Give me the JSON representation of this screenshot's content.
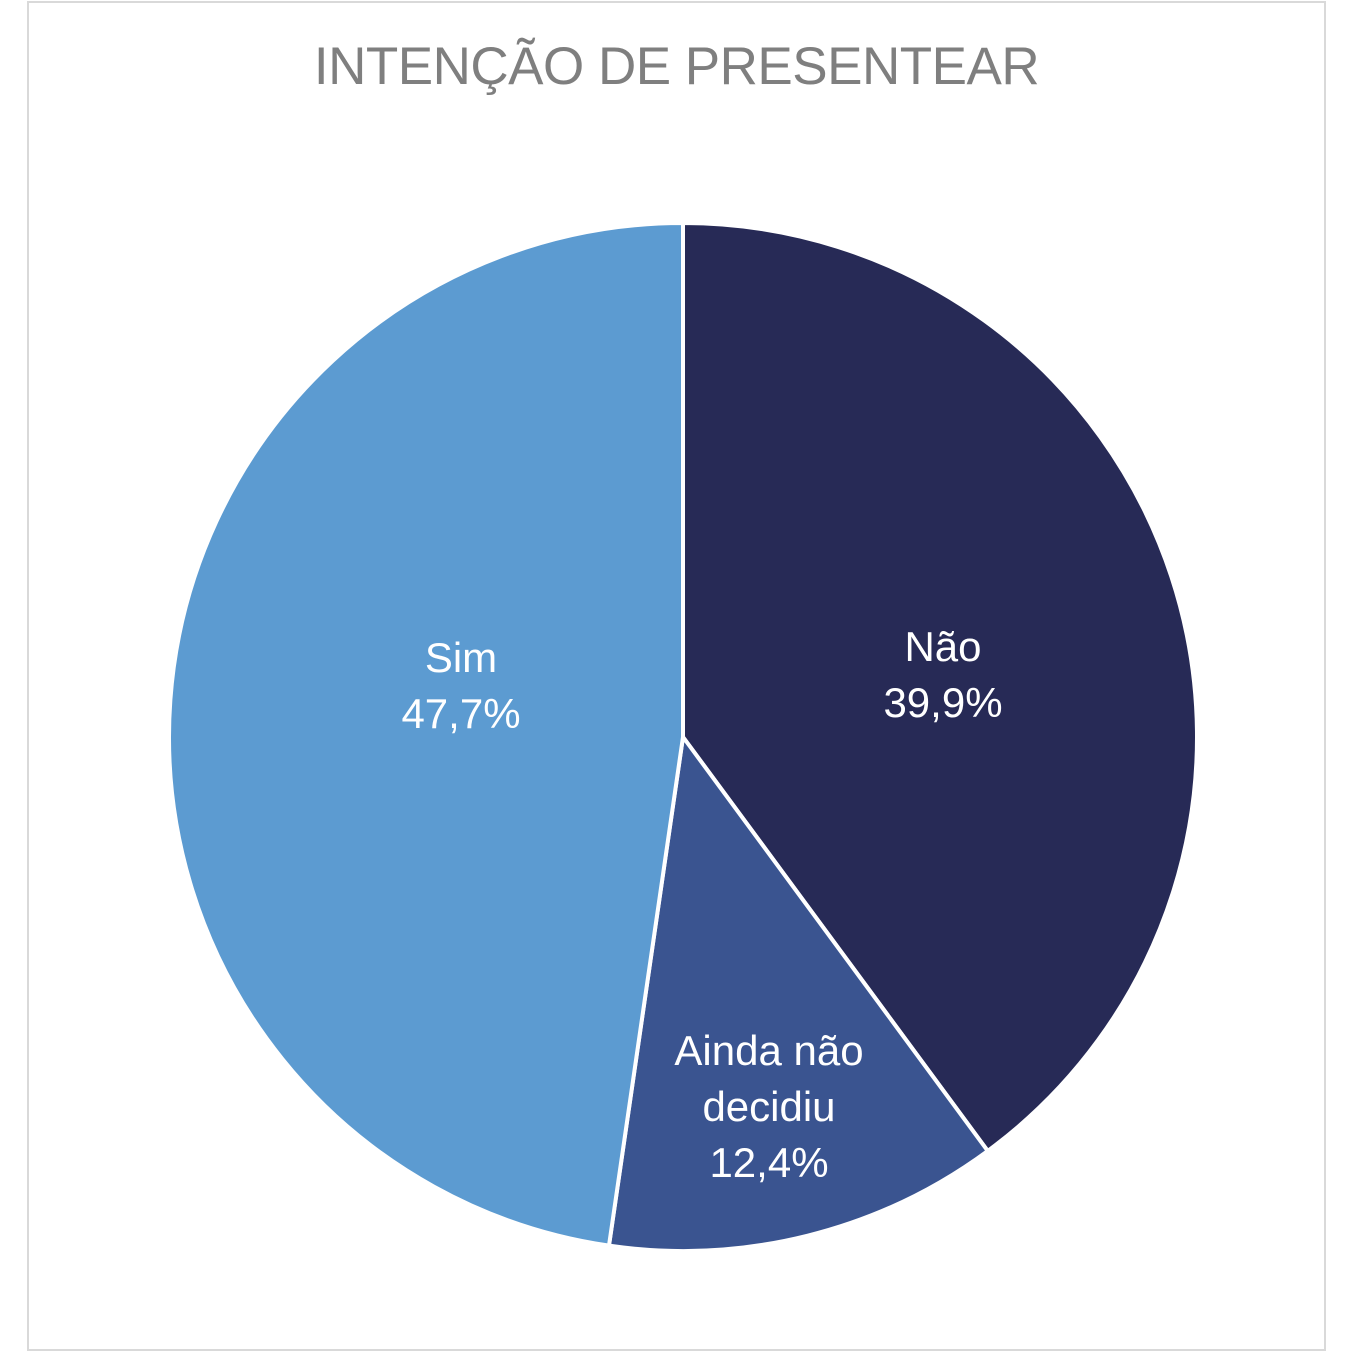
{
  "header": {
    "title": "INTENÇÃO DE PRESENTEAR"
  },
  "colors": {
    "background": "#FFFFFF",
    "frame_border": "#D9D9D9",
    "title_text": "#7F7F7F",
    "slice_border": "#FFFFFF",
    "label_text": "#FFFFFF"
  },
  "chart_data": {
    "type": "pie",
    "title": "INTENÇÃO DE PRESENTEAR",
    "start_angle_deg": 0,
    "direction": "clockwise",
    "legend": "none",
    "labels_on_slices": true,
    "decimal_separator": ",",
    "slices": [
      {
        "label": "Não",
        "value": 39.9,
        "display_value": "39,9%",
        "color": "#272A56",
        "label_lines": [
          "Não",
          "39,9%"
        ],
        "label_offset": [
          260,
          -63
        ]
      },
      {
        "label": "Ainda não decidiu",
        "value": 12.4,
        "display_value": "12,4%",
        "color": "#3A5490",
        "label_lines": [
          "Ainda não",
          "decidiu",
          "12,4%"
        ],
        "label_offset": [
          86,
          369
        ]
      },
      {
        "label": "Sim",
        "value": 47.7,
        "display_value": "47,7%",
        "color": "#5C9BD1",
        "label_lines": [
          "Sim",
          "47,7%"
        ],
        "label_offset": [
          -222,
          -52
        ]
      }
    ]
  }
}
